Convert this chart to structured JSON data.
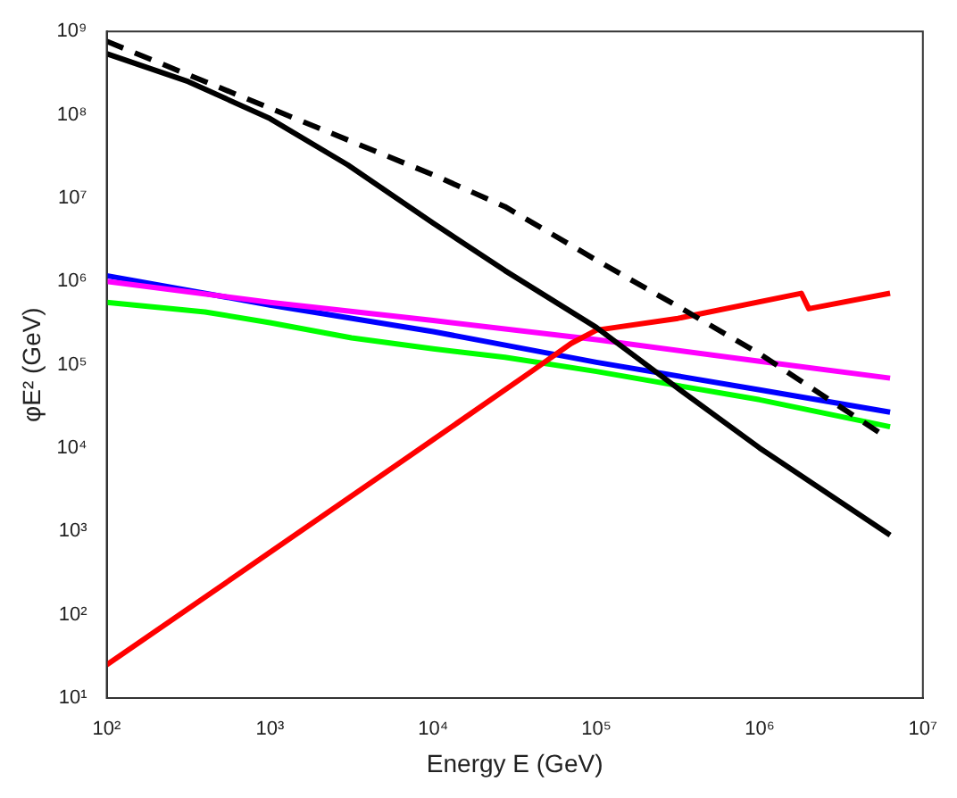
{
  "chart_data": {
    "type": "line",
    "xlabel": "Energy E (GeV)",
    "ylabel": "φE² (GeV)",
    "log": "xy",
    "grid": false,
    "legend": false,
    "marker": "none",
    "xlim": [
      100,
      10000000
    ],
    "ylim": [
      10,
      1000000000
    ],
    "xticks": [
      {
        "value": 100,
        "label": "10²"
      },
      {
        "value": 1000,
        "label": "10³"
      },
      {
        "value": 10000,
        "label": "10⁴"
      },
      {
        "value": 100000,
        "label": "10⁵"
      },
      {
        "value": 1000000,
        "label": "10⁶"
      },
      {
        "value": 10000000,
        "label": "10⁷"
      }
    ],
    "yticks": [
      {
        "value": 10,
        "label": "10¹"
      },
      {
        "value": 100,
        "label": "10²"
      },
      {
        "value": 1000,
        "label": "10³"
      },
      {
        "value": 10000,
        "label": "10⁴"
      },
      {
        "value": 100000,
        "label": "10⁵"
      },
      {
        "value": 1000000,
        "label": "10⁶"
      },
      {
        "value": 10000000,
        "label": "10⁷"
      },
      {
        "value": 100000000,
        "label": "10⁸"
      },
      {
        "value": 1000000000,
        "label": "10⁹"
      }
    ],
    "series": [
      {
        "color": "#000000",
        "line_style": "solid",
        "x": [
          100,
          316,
          1000,
          3000,
          10000,
          27500,
          100000,
          316000,
          1000000,
          6300000
        ],
        "values": [
          540000000,
          250000000,
          90000000,
          25000000,
          5000000,
          1350000,
          280000,
          52000,
          10000,
          900
        ]
      },
      {
        "color": "#000000",
        "line_style": "dashed",
        "x": [
          100,
          1000,
          10000,
          27500,
          100000,
          316000,
          1000000,
          5500000
        ],
        "values": [
          760000000,
          120000000,
          19000000,
          7900000,
          1800000,
          500000,
          135000,
          15000
        ]
      },
      {
        "color": "#ff0000",
        "line_style": "solid",
        "x": [
          100,
          1000,
          10000,
          40000,
          70000,
          100000,
          316000,
          1800000,
          2000000,
          6300000
        ],
        "values": [
          25,
          560,
          12600,
          83000,
          180000,
          260000,
          360000,
          720000,
          470000,
          720000
        ]
      },
      {
        "color": "#ff00ff",
        "line_style": "solid",
        "x": [
          100,
          1000,
          10000,
          100000,
          1000000,
          6300000
        ],
        "values": [
          1000000,
          560000,
          340000,
          200000,
          110000,
          69000
        ]
      },
      {
        "color": "#0000ff",
        "line_style": "solid",
        "x": [
          100,
          1000,
          10000,
          100000,
          1000000,
          6300000
        ],
        "values": [
          1170000,
          520000,
          250000,
          107000,
          50000,
          27000
        ]
      },
      {
        "color": "#00ff00",
        "line_style": "solid",
        "x": [
          100,
          400,
          1000,
          3162,
          10000,
          27500,
          100000,
          1000000,
          6300000
        ],
        "values": [
          560000,
          430000,
          320000,
          210000,
          155000,
          123000,
          83000,
          38000,
          18000
        ]
      }
    ]
  }
}
